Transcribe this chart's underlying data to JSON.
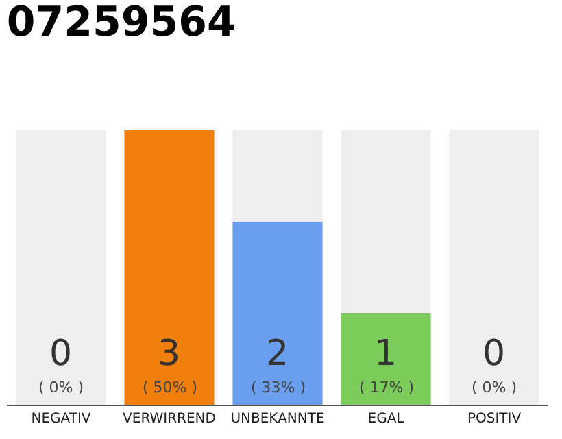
{
  "chart_data": {
    "type": "bar",
    "title": "07259564",
    "categories": [
      "NEGATIV",
      "VERWIRREND",
      "UNBEKANNTE",
      "EGAL",
      "POSITIV"
    ],
    "values": [
      0,
      3,
      2,
      1,
      0
    ],
    "value_labels": [
      "0\n( 0% )",
      "3\n( 50% )",
      "2\n( 33% )",
      "1\n( 17% )",
      "0\n( 0% )"
    ],
    "colors": [
      "#cccccc",
      "#f07f0c",
      "#6a9ff0",
      "#7ccc5c",
      "#cccccc"
    ],
    "ylim": [
      0,
      3
    ],
    "tick_labels": "x",
    "bands": [
      {
        "axis": "x",
        "from": "NEGATIV",
        "to": "NEGATIV",
        "color": "#eeeeee"
      },
      {
        "axis": "x",
        "from": "UNBEKANNTE",
        "to": "UNBEKANNTE",
        "color": "#eeeeee"
      },
      {
        "axis": "x",
        "from": "EGAL",
        "to": "EGAL",
        "color": "#eeeeee"
      },
      {
        "axis": "x",
        "from": "POSITIV",
        "to": "POSITIV",
        "color": "#eeeeee"
      }
    ]
  }
}
